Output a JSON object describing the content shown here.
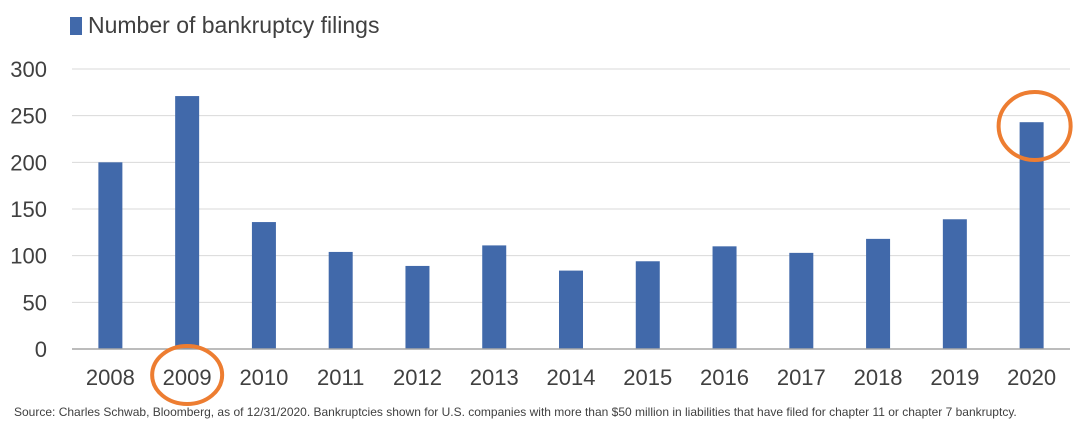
{
  "colors": {
    "bar": "#4169aa",
    "highlight": "#ed7d31",
    "grid": "#d9d9d9",
    "axis": "#a6a6a6",
    "text": "#404040"
  },
  "chart_data": {
    "type": "bar",
    "categories": [
      "2008",
      "2009",
      "2010",
      "2011",
      "2012",
      "2013",
      "2014",
      "2015",
      "2016",
      "2017",
      "2018",
      "2019",
      "2020"
    ],
    "series": [
      {
        "name": "Number of bankruptcy filings",
        "values": [
          200,
          271,
          136,
          104,
          89,
          111,
          84,
          94,
          110,
          103,
          118,
          139,
          243
        ]
      }
    ],
    "ylim": [
      0,
      300
    ],
    "yticks": [
      "0",
      "50",
      "100",
      "150",
      "200",
      "250",
      "300"
    ],
    "grid": true,
    "legend": "top-left",
    "highlighted_categories": [
      "2009",
      "2020"
    ],
    "source_note": "Source: Charles Schwab, Bloomberg, as of 12/31/2020. Bankruptcies shown for U.S. companies with more than $50 million in liabilities that have filed for chapter 11 or chapter 7 bankruptcy."
  }
}
